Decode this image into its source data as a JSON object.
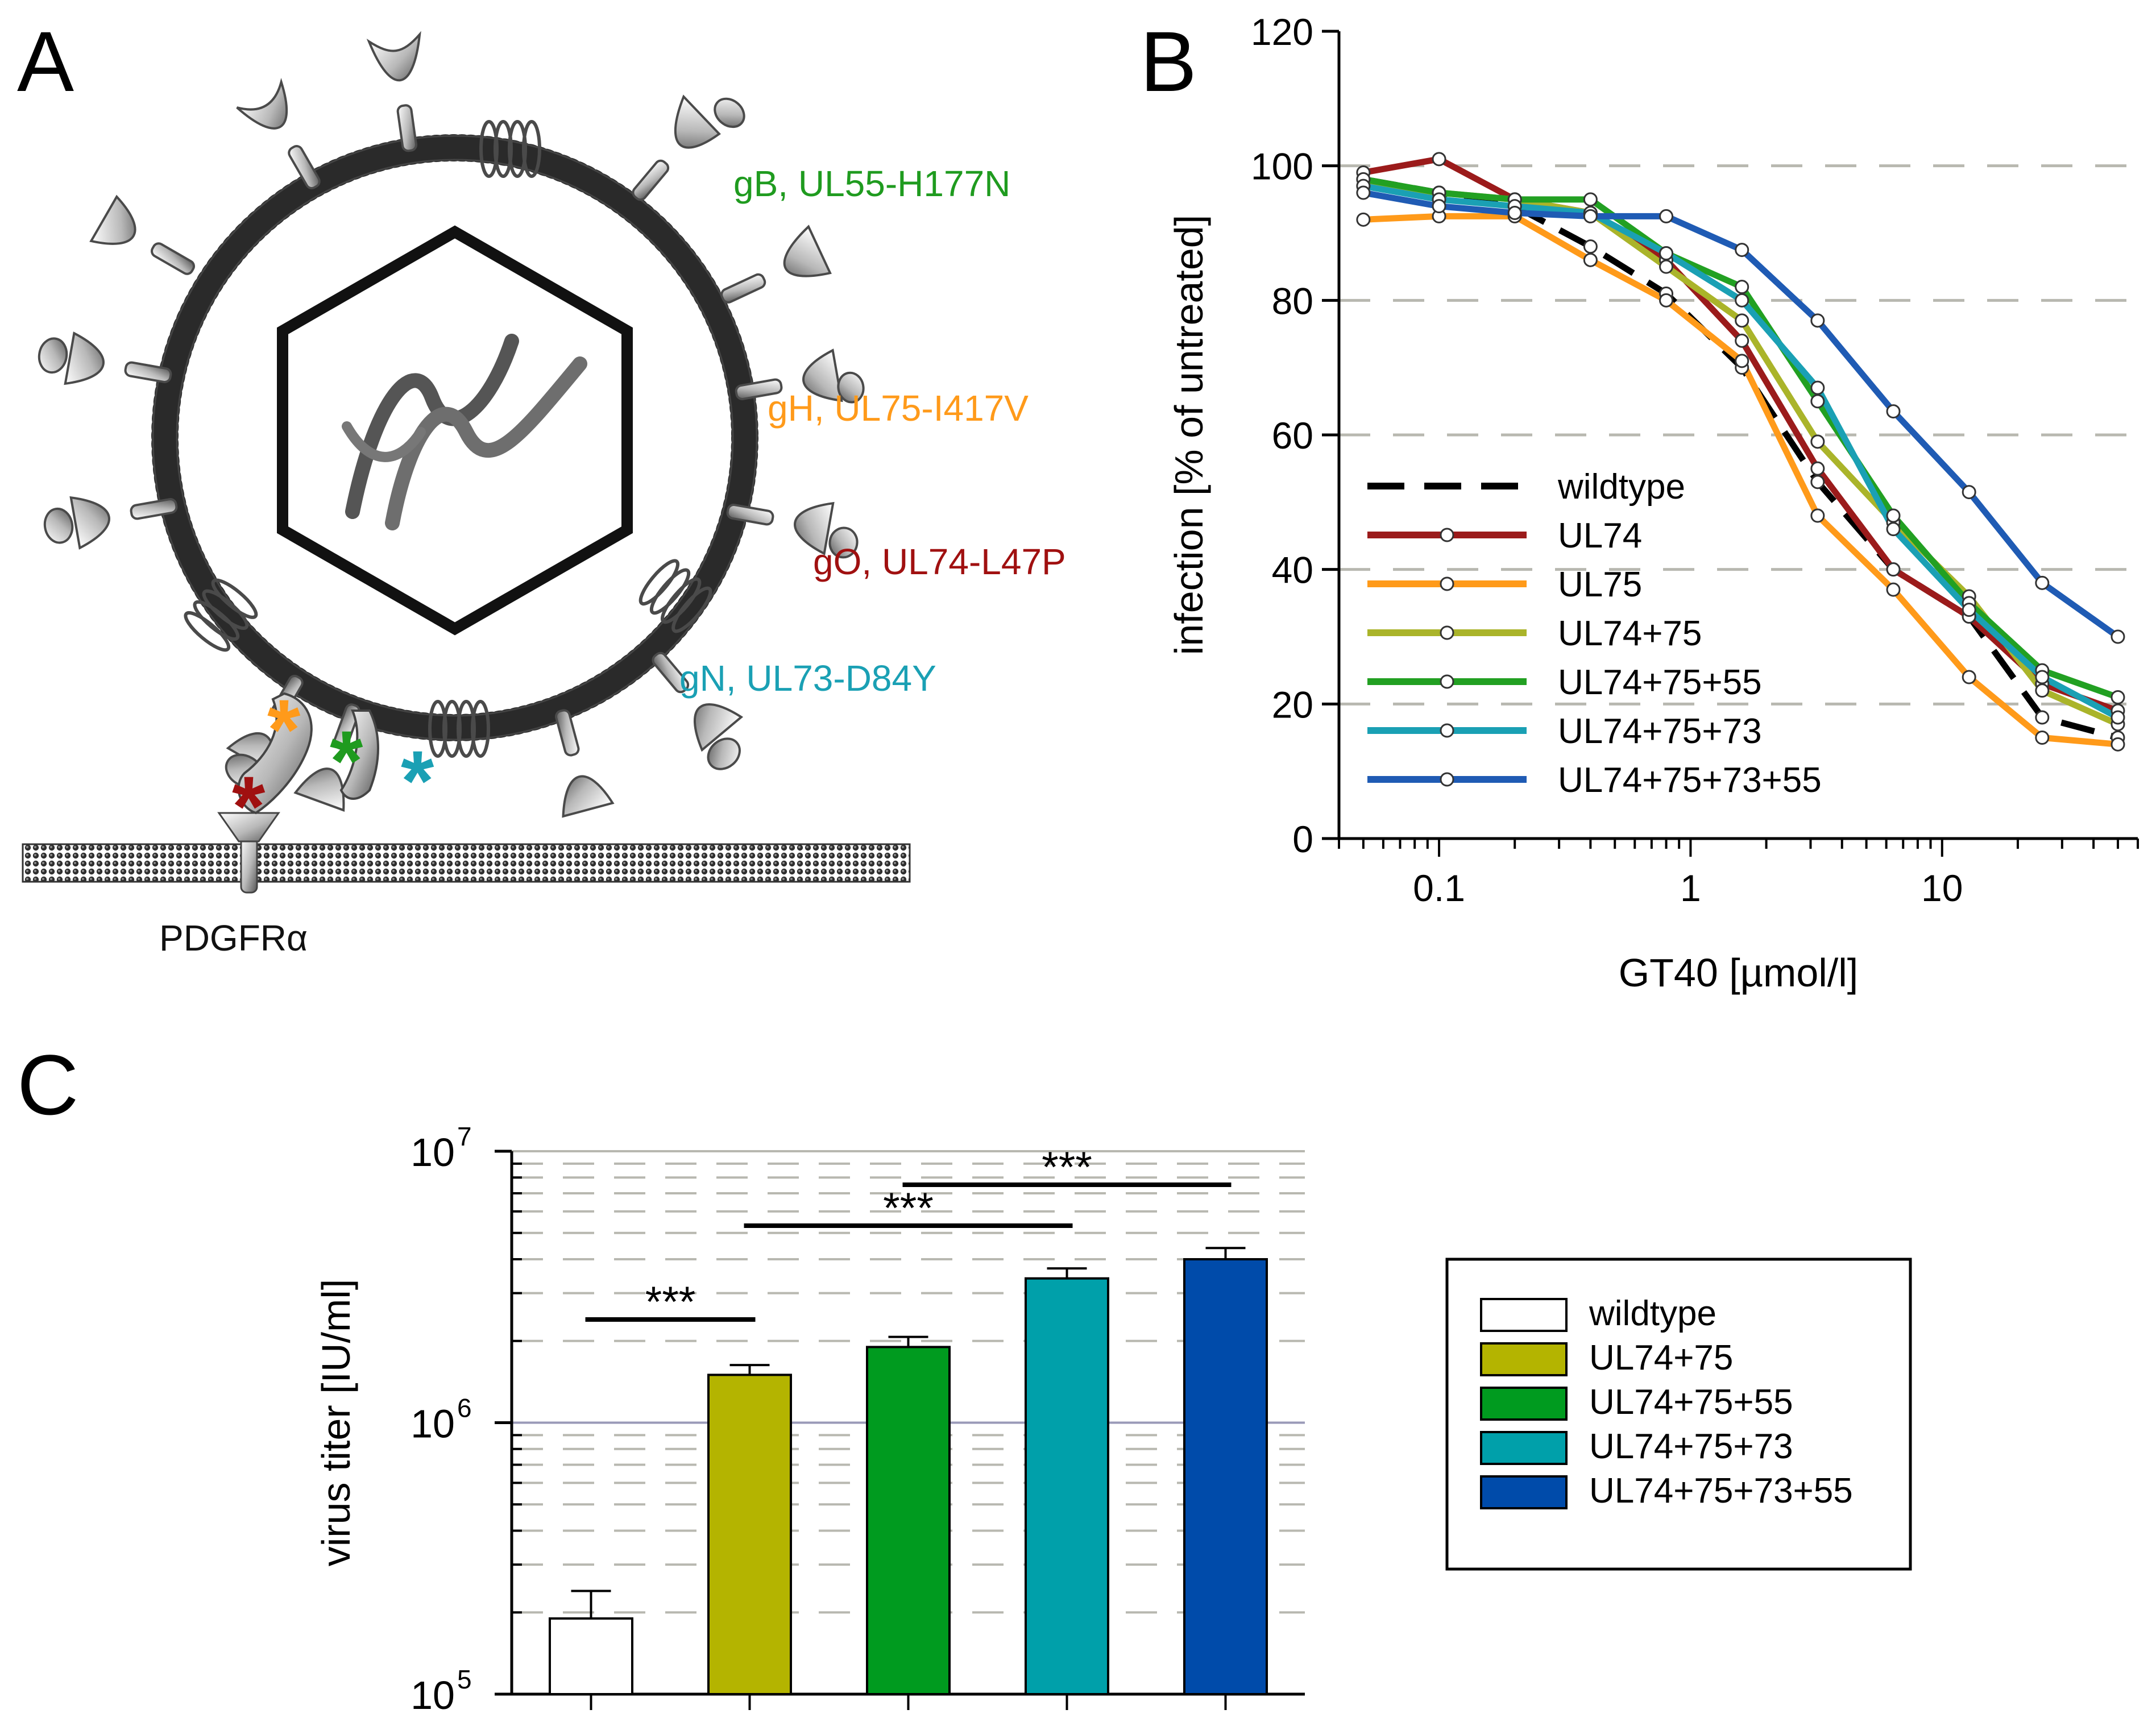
{
  "panel_a": {
    "letter": "A",
    "labels": {
      "gB": "gB, UL55-H177N",
      "gH": "gH, UL75-I417V",
      "gO": "gO, UL74-L47P",
      "gN": "gN, UL73-D84Y",
      "receptor": "PDGFRα"
    },
    "colors": {
      "gB": "#1f9b1f",
      "gH": "#ff9a1a",
      "gO": "#a01010",
      "gN": "#1aa0b4"
    }
  },
  "panel_b": {
    "letter": "B"
  },
  "panel_c": {
    "letter": "C"
  },
  "chart_data": [
    {
      "type": "line",
      "panel": "B",
      "xlabel": "GT40 [µmol/l]",
      "ylabel": "infection [% of untreated]",
      "xscale": "log",
      "xlim": [
        0.04,
        60
      ],
      "ylim": [
        0,
        120
      ],
      "xticks": [
        0.1,
        1,
        10
      ],
      "xtick_labels": [
        "0.1",
        "1",
        "10"
      ],
      "yticks": [
        0,
        20,
        40,
        60,
        80,
        100,
        120
      ],
      "ytick_labels": [
        "0",
        "20",
        "40",
        "60",
        "80",
        "100",
        "120"
      ],
      "grid": "horizontal dashed",
      "legend_position": "lower-left",
      "x": [
        0.05,
        0.1,
        0.2,
        0.4,
        0.8,
        1.6,
        3.2,
        6.4,
        12.8,
        25,
        50
      ],
      "series": [
        {
          "name": "wildtype",
          "color": "#000000",
          "dashed": true,
          "markers": false,
          "values": [
            98,
            96,
            94,
            88,
            81,
            70,
            53,
            40,
            33,
            18,
            15
          ]
        },
        {
          "name": "UL74",
          "color": "#9b1b1b",
          "dashed": false,
          "markers": true,
          "values": [
            99,
            101,
            95,
            93,
            86,
            74,
            55,
            40,
            33,
            23,
            19
          ]
        },
        {
          "name": "UL75",
          "color": "#ff9a1a",
          "dashed": false,
          "markers": true,
          "values": [
            92,
            92.5,
            92.5,
            86,
            80,
            71,
            48,
            37,
            24,
            15,
            14
          ]
        },
        {
          "name": "UL74+75",
          "color": "#aab42a",
          "dashed": false,
          "markers": true,
          "values": [
            97,
            96,
            95,
            93,
            85,
            77,
            59,
            47,
            36,
            22,
            17
          ]
        },
        {
          "name": "UL74+75+55",
          "color": "#22a022",
          "dashed": false,
          "markers": true,
          "values": [
            98,
            96,
            95,
            95,
            87,
            82,
            65,
            48,
            35,
            25,
            21
          ]
        },
        {
          "name": "UL74+75+73",
          "color": "#1aa0b4",
          "dashed": false,
          "markers": true,
          "values": [
            97,
            95,
            94,
            93,
            87,
            80,
            67,
            46,
            34,
            24,
            18
          ]
        },
        {
          "name": "UL74+75+73+55",
          "color": "#1f5bb4",
          "dashed": false,
          "markers": true,
          "values": [
            96,
            94,
            93,
            92.5,
            92.5,
            87.5,
            77,
            63.5,
            51.5,
            38,
            30
          ]
        }
      ]
    },
    {
      "type": "bar",
      "panel": "C",
      "ylabel": "virus titer [IU/ml]",
      "yscale": "log",
      "ylim": [
        100000,
        10000000
      ],
      "ytick_labels": [
        {
          "base": "10",
          "exp": "5"
        },
        {
          "base": "10",
          "exp": "6"
        },
        {
          "base": "10",
          "exp": "7"
        }
      ],
      "legend_position": "right",
      "categories": [
        "wildtype",
        "UL74+75",
        "UL74+75+55",
        "UL74+75+73",
        "UL74+75+73+55"
      ],
      "values": [
        190000,
        1500000,
        1900000,
        3400000,
        4000000
      ],
      "errors": [
        50000,
        130000,
        170000,
        300000,
        400000
      ],
      "colors": [
        "#ffffff",
        "#b4b400",
        "#009b1f",
        "#00a0aa",
        "#004baa"
      ],
      "significance": [
        {
          "from": 0,
          "to": 1,
          "label": "***"
        },
        {
          "from": 1,
          "to": 3,
          "label": "***"
        },
        {
          "from": 2,
          "to": 4,
          "label": "***"
        }
      ]
    }
  ]
}
